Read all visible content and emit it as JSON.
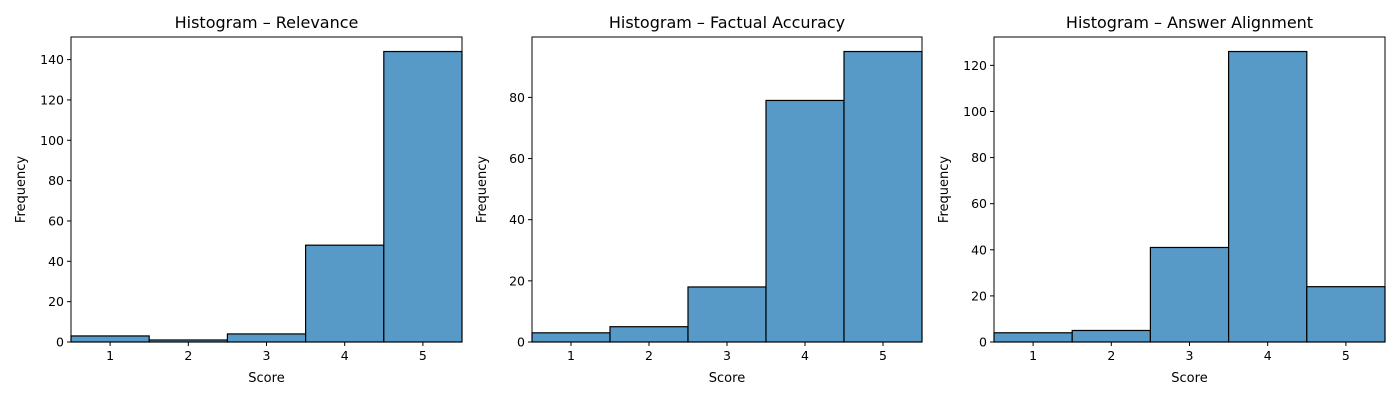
{
  "chart_data": [
    {
      "type": "bar",
      "title": "Histogram – Relevance",
      "xlabel": "Score",
      "ylabel": "Frequency",
      "categories": [
        "1",
        "2",
        "3",
        "4",
        "5"
      ],
      "values": [
        3,
        1,
        4,
        48,
        144
      ],
      "xlim": [
        0.5,
        5.5
      ],
      "ylim": [
        0,
        151.2
      ],
      "yticks": [
        0,
        20,
        40,
        60,
        80,
        100,
        120,
        140
      ],
      "grid": false
    },
    {
      "type": "bar",
      "title": "Histogram – Factual Accuracy",
      "xlabel": "Score",
      "ylabel": "Frequency",
      "categories": [
        "1",
        "2",
        "3",
        "4",
        "5"
      ],
      "values": [
        3,
        5,
        18,
        79,
        95
      ],
      "xlim": [
        0.5,
        5.5
      ],
      "ylim": [
        0,
        99.75
      ],
      "yticks": [
        0,
        20,
        40,
        60,
        80
      ],
      "grid": false
    },
    {
      "type": "bar",
      "title": "Histogram – Answer Alignment",
      "xlabel": "Score",
      "ylabel": "Frequency",
      "categories": [
        "1",
        "2",
        "3",
        "4",
        "5"
      ],
      "values": [
        4,
        5,
        41,
        126,
        24
      ],
      "xlim": [
        0.5,
        5.5
      ],
      "ylim": [
        0,
        132.3
      ],
      "yticks": [
        0,
        20,
        40,
        60,
        80,
        100,
        120
      ],
      "grid": false
    }
  ],
  "colors": {
    "bar_fill": "#5799c7",
    "bar_edge": "#000000"
  }
}
